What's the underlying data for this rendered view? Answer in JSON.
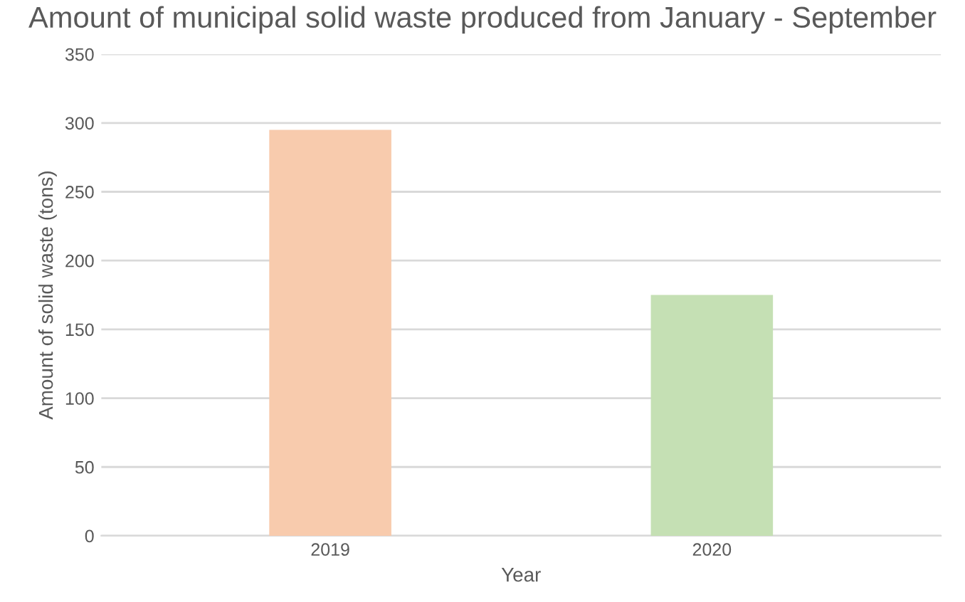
{
  "chart_data": {
    "type": "bar",
    "title": "Amount of municipal solid waste produced from January - September",
    "xlabel": "Year",
    "ylabel": "Amount of solid waste (tons)",
    "categories": [
      "2019",
      "2020"
    ],
    "values": [
      295,
      175
    ],
    "colors": [
      "#f8cbad",
      "#c5e0b4"
    ],
    "ylim": [
      0,
      350
    ],
    "yticks": [
      0,
      50,
      100,
      150,
      200,
      250,
      300,
      350
    ],
    "grid": "y",
    "legend": false
  }
}
